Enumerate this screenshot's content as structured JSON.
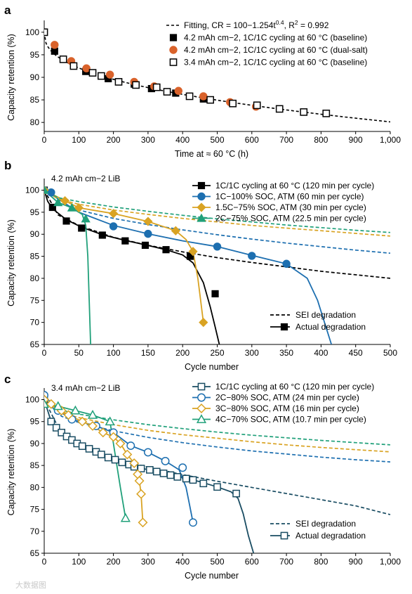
{
  "colors": {
    "black": "#000000",
    "orange": "#d9622b",
    "blue": "#1d6fb0",
    "gold": "#d9a323",
    "green": "#20a07a",
    "navy": "#1a4d63"
  },
  "watermark": "大数据图",
  "chart_data": [
    {
      "panel": "a",
      "type": "scatter",
      "xlabel": "Time at ≈ 60 °C (h)",
      "ylabel": "Capacity retention (%)",
      "xlim": [
        0,
        1000
      ],
      "ylim": [
        78,
        102
      ],
      "xticks": [
        0,
        100,
        200,
        300,
        400,
        500,
        600,
        700,
        800,
        900,
        1000
      ],
      "xtick_labels": [
        "0",
        "100",
        "200",
        "300",
        "400",
        "500",
        "600",
        "700",
        "800",
        "900",
        "1,000"
      ],
      "yticks": [
        80,
        85,
        90,
        95,
        100
      ],
      "legend_position": "top-right",
      "fit": {
        "label": "Fitting, CR = 100−1.254t",
        "label_exp": "0.4",
        "label_tail": ", R",
        "label_exp2": "2",
        "label_end": " = 0.992",
        "A": 1.254,
        "n": 0.4,
        "x_max": 1000,
        "color": "#000000"
      },
      "series": [
        {
          "name": "4.2 mAh cm−2, 1C/1C cycling at 60 °C (baseline)",
          "marker": "square-filled",
          "color": "#000000",
          "x": [
            0,
            30,
            120,
            185,
            260,
            310,
            380,
            460
          ],
          "y": [
            100,
            95.8,
            91.3,
            89.7,
            88.5,
            87.5,
            86.5,
            85.2
          ]
        },
        {
          "name": "4.2 mAh cm−2, 1C/1C cycling at 60 °C (dual-salt)",
          "marker": "circle-filled",
          "color": "#d9622b",
          "x": [
            30,
            78,
            122,
            190,
            260,
            318,
            388,
            460,
            537,
            612
          ],
          "y": [
            97.2,
            93.6,
            92.0,
            90.6,
            89.0,
            88.0,
            87.0,
            85.8,
            84.5,
            83.5
          ]
        },
        {
          "name": "3.4 mAh cm−2, 1C/1C cycling at 60 °C (baseline)",
          "marker": "square-open",
          "color": "#000000",
          "x": [
            0,
            55,
            85,
            140,
            165,
            215,
            265,
            325,
            355,
            420,
            480,
            545,
            615,
            680,
            750,
            815
          ],
          "y": [
            100,
            94.0,
            92.5,
            91.0,
            90.3,
            89.0,
            88.3,
            87.8,
            86.8,
            85.8,
            85.0,
            84.2,
            83.8,
            83.0,
            82.3,
            82.0
          ]
        }
      ]
    },
    {
      "panel": "b",
      "type": "line",
      "annotation": "4.2 mAh cm−2 LiB",
      "xlabel": "Cycle number",
      "ylabel": "Capacity retention (%)",
      "xlim": [
        0,
        500
      ],
      "ylim": [
        65,
        102
      ],
      "xticks": [
        0,
        50,
        100,
        150,
        200,
        250,
        300,
        350,
        400,
        450,
        500
      ],
      "xtick_labels": [
        "0",
        "50",
        "100",
        "150",
        "200",
        "250",
        "300",
        "350",
        "400",
        "450",
        "500"
      ],
      "yticks": [
        65,
        70,
        75,
        80,
        85,
        90,
        95,
        100
      ],
      "legend_position": "top-right",
      "style_legend": [
        {
          "name": "SEI degradation",
          "style": "dashed",
          "marker": "none"
        },
        {
          "name": "Actual degradation",
          "style": "solid",
          "marker": "square-filled"
        }
      ],
      "series": [
        {
          "name": "1C/1C cycling at 60 °C (120 min per cycle)",
          "marker": "square-filled",
          "color": "#000000",
          "x": [
            0,
            12,
            32,
            54,
            84,
            117,
            146,
            176,
            211,
            247
          ],
          "y": [
            100,
            96.1,
            93.0,
            91.4,
            89.8,
            88.5,
            87.5,
            86.5,
            85.0,
            76.5
          ],
          "curve_x": [
            0,
            5,
            12,
            32,
            54,
            84,
            117,
            146,
            176,
            200,
            215,
            230,
            240,
            247,
            253
          ],
          "curve_y": [
            100,
            97.5,
            95.8,
            93.3,
            91.6,
            89.9,
            88.6,
            87.6,
            86.5,
            85.3,
            83.5,
            79.0,
            73.5,
            69.0,
            65
          ],
          "sei_x": [
            0,
            20,
            50,
            100,
            150,
            200,
            250,
            300,
            350,
            400,
            450,
            500
          ],
          "sei_y": [
            100,
            94.4,
            92.0,
            89.3,
            87.5,
            86.0,
            84.7,
            83.6,
            82.6,
            81.6,
            80.8,
            80.0
          ]
        },
        {
          "name": "1C−100% SOC, ATM (60 min per cycle)",
          "marker": "circle-filled",
          "color": "#1d6fb0",
          "x": [
            0,
            10,
            100,
            150,
            250,
            300,
            350
          ],
          "y": [
            100,
            99.5,
            91.8,
            90.1,
            87.2,
            85.1,
            83.3
          ],
          "curve_x": [
            0,
            10,
            50,
            100,
            150,
            200,
            250,
            300,
            350,
            380,
            395,
            405,
            415
          ],
          "curve_y": [
            100,
            99.0,
            95.0,
            92.0,
            90.1,
            88.5,
            87.2,
            85.2,
            83.3,
            80.0,
            75.0,
            70.0,
            65.0
          ],
          "sei_x": [
            0,
            20,
            50,
            100,
            150,
            200,
            250,
            300,
            350,
            400,
            450,
            500
          ],
          "sei_y": [
            100,
            97.2,
            95.5,
            93.6,
            92.2,
            91.0,
            89.9,
            88.9,
            88.0,
            87.2,
            86.4,
            85.7
          ]
        },
        {
          "name": "1.5C−75% SOC, ATM (30 min per cycle)",
          "marker": "diamond-filled",
          "color": "#d9a323",
          "x": [
            0,
            30,
            50,
            100,
            150,
            190,
            215,
            230
          ],
          "y": [
            100,
            97.6,
            96.0,
            94.7,
            92.9,
            90.8,
            86.1,
            70.0
          ],
          "curve_x": [
            0,
            30,
            50,
            100,
            150,
            190,
            205,
            215,
            222,
            230
          ],
          "curve_y": [
            100,
            97.6,
            96.0,
            94.7,
            92.9,
            90.8,
            88.8,
            86.1,
            80.0,
            70.0
          ],
          "sei_x": [
            0,
            20,
            50,
            100,
            150,
            200,
            250,
            300,
            350,
            400,
            450,
            500
          ],
          "sei_y": [
            100,
            98.0,
            96.8,
            95.5,
            94.5,
            93.6,
            92.8,
            92.0,
            91.4,
            90.8,
            90.2,
            89.6
          ]
        },
        {
          "name": "2C−75% SOC, ATM (22.5 min per cycle)",
          "marker": "triangle-filled",
          "color": "#20a07a",
          "x": [
            0,
            20,
            40,
            60
          ],
          "y": [
            100,
            97.2,
            96.0,
            93.5
          ],
          "curve_x": [
            0,
            20,
            40,
            55,
            60,
            63,
            65,
            67
          ],
          "curve_y": [
            100,
            97.2,
            96.0,
            94.5,
            92.0,
            85.0,
            75.0,
            65.0
          ],
          "sei_x": [
            0,
            20,
            50,
            100,
            150,
            200,
            250,
            300,
            350,
            400,
            450,
            500
          ],
          "sei_y": [
            100,
            98.3,
            97.4,
            96.2,
            95.2,
            94.3,
            93.5,
            92.8,
            92.1,
            91.5,
            90.9,
            90.4
          ]
        }
      ]
    },
    {
      "panel": "c",
      "type": "line",
      "annotation": "3.4 mAh cm−2 LiB",
      "xlabel": "Cycle number",
      "ylabel": "Capacity retention (%)",
      "xlim": [
        0,
        1000
      ],
      "ylim": [
        65,
        102
      ],
      "xticks": [
        0,
        100,
        200,
        300,
        400,
        500,
        600,
        700,
        800,
        900,
        1000
      ],
      "xtick_labels": [
        "0",
        "100",
        "200",
        "300",
        "400",
        "500",
        "600",
        "700",
        "800",
        "900",
        "1,000"
      ],
      "yticks": [
        65,
        70,
        75,
        80,
        85,
        90,
        95,
        100
      ],
      "legend_position": "top-right",
      "style_legend": [
        {
          "name": "SEI degradation",
          "style": "dashed",
          "marker": "none"
        },
        {
          "name": "Actual degradation",
          "style": "solid",
          "marker": "square-open"
        }
      ],
      "series": [
        {
          "name": "1C/1C cycling at 60 °C (120 min per cycle)",
          "marker": "square-open",
          "color": "#1a4d63",
          "x": [
            0,
            20,
            35,
            50,
            65,
            80,
            95,
            110,
            130,
            150,
            165,
            185,
            205,
            225,
            245,
            260,
            280,
            305,
            325,
            345,
            365,
            385,
            410,
            430,
            460,
            500,
            555
          ],
          "y": [
            100,
            95.0,
            93.6,
            92.5,
            91.6,
            90.8,
            90.0,
            89.4,
            88.8,
            88.1,
            87.5,
            86.8,
            86.3,
            85.7,
            85.2,
            84.7,
            84.3,
            84.0,
            83.6,
            83.2,
            82.8,
            82.4,
            82.0,
            81.7,
            80.9,
            80.1,
            78.6
          ],
          "curve_x": [
            0,
            20,
            50,
            100,
            150,
            200,
            250,
            300,
            350,
            400,
            450,
            500,
            540,
            560,
            575,
            590,
            605
          ],
          "curve_y": [
            100,
            95.0,
            92.5,
            89.7,
            88.1,
            86.5,
            85.1,
            84.0,
            83.0,
            82.2,
            81.3,
            80.1,
            79.0,
            77.5,
            74.0,
            69.0,
            65.0
          ],
          "sei_x": [
            0,
            50,
            100,
            200,
            300,
            400,
            500,
            600,
            700,
            800,
            900,
            1000
          ],
          "sei_y": [
            100,
            92.2,
            89.8,
            86.7,
            84.6,
            82.9,
            81.4,
            80.0,
            78.6,
            77.2,
            75.8,
            73.8
          ]
        },
        {
          "name": "2C−80% SOC, ATM (24 min per cycle)",
          "marker": "circle-open",
          "color": "#1d6fb0",
          "x": [
            0,
            40,
            80,
            150,
            200,
            250,
            300,
            350,
            400,
            430
          ],
          "y": [
            101,
            97.5,
            95.5,
            94.0,
            92.5,
            89.5,
            88.0,
            86.0,
            84.5,
            72.0
          ],
          "curve_x": [
            0,
            40,
            80,
            150,
            200,
            250,
            300,
            350,
            390,
            410,
            420,
            430
          ],
          "curve_y": [
            101,
            97.5,
            95.5,
            94.0,
            92.5,
            89.5,
            88.0,
            86.0,
            84.0,
            80.0,
            76.0,
            72.0
          ],
          "sei_x": [
            0,
            50,
            100,
            200,
            300,
            400,
            500,
            600,
            700,
            800,
            900,
            1000
          ],
          "sei_y": [
            100,
            96.2,
            94.8,
            92.9,
            91.4,
            90.2,
            89.2,
            88.3,
            87.6,
            86.9,
            86.3,
            85.8
          ]
        },
        {
          "name": "3C−80% SOC, ATM (16 min per cycle)",
          "marker": "diamond-open",
          "color": "#d9a323",
          "x": [
            0,
            20,
            50,
            70,
            110,
            140,
            170,
            200,
            220,
            240,
            260,
            270,
            275,
            280,
            285
          ],
          "y": [
            100,
            99.0,
            97.5,
            96.5,
            95.0,
            94.0,
            92.5,
            91.5,
            90.0,
            87.5,
            85.5,
            83.0,
            81.5,
            78.5,
            72.0
          ],
          "curve_x": [
            0,
            20,
            50,
            70,
            110,
            140,
            170,
            200,
            220,
            240,
            260,
            270,
            275,
            280,
            285
          ],
          "curve_y": [
            100,
            99.0,
            97.5,
            96.5,
            95.0,
            94.0,
            92.5,
            91.5,
            90.0,
            87.5,
            85.5,
            83.0,
            81.5,
            78.5,
            72.0
          ],
          "sei_x": [
            0,
            50,
            100,
            200,
            300,
            400,
            500,
            600,
            700,
            800,
            900,
            1000
          ],
          "sei_y": [
            100,
            97.0,
            95.9,
            94.3,
            93.0,
            92.0,
            91.2,
            90.4,
            89.7,
            89.1,
            88.6,
            88.1
          ]
        },
        {
          "name": "4C−70% SOC, ATM (10.7 min per cycle)",
          "marker": "triangle-open",
          "color": "#20a07a",
          "x": [
            0,
            40,
            90,
            140,
            190,
            235
          ],
          "y": [
            99.0,
            98.5,
            97.5,
            96.5,
            95.0,
            73.0
          ],
          "curve_x": [
            0,
            40,
            90,
            140,
            190,
            200,
            210,
            220,
            235
          ],
          "curve_y": [
            99.0,
            98.5,
            97.5,
            96.5,
            95.0,
            90.0,
            85.0,
            80.0,
            73.0
          ],
          "sei_x": [
            0,
            50,
            100,
            200,
            300,
            400,
            500,
            600,
            700,
            800,
            900,
            1000
          ],
          "sei_y": [
            100,
            97.6,
            96.7,
            95.4,
            94.3,
            93.4,
            92.6,
            91.9,
            91.3,
            90.7,
            90.2,
            89.7
          ]
        }
      ]
    }
  ]
}
